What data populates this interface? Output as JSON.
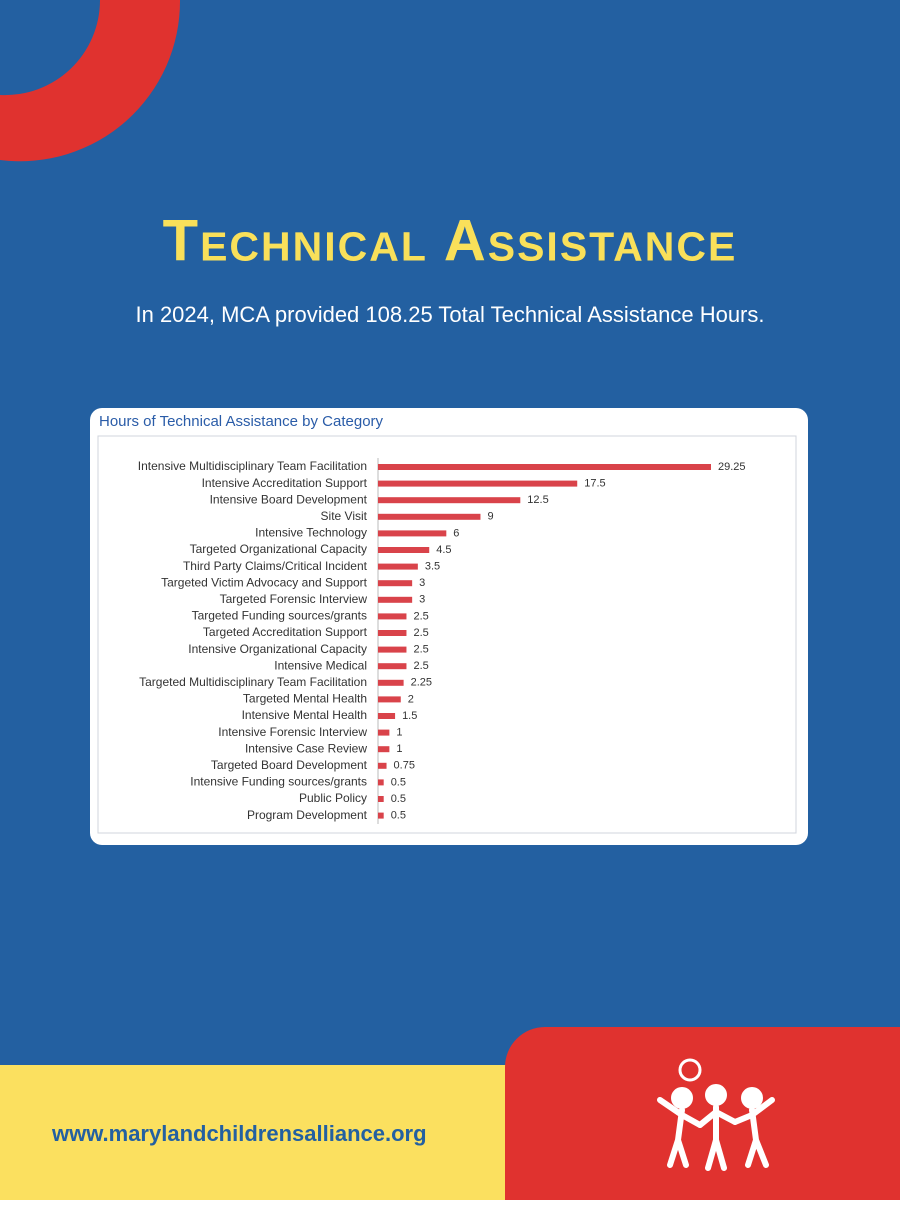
{
  "header": {
    "title": "Technical Assistance",
    "subtitle": "In 2024, MCA provided 108.25 Total Technical Assistance Hours."
  },
  "footer": {
    "url": "www.marylandchildrensalliance.org"
  },
  "chart_data": {
    "type": "bar",
    "orientation": "horizontal",
    "title": "Hours of Technical Assistance by Category",
    "color": "#d9434a",
    "categories": [
      "Intensive Multidisciplinary Team Facilitation",
      "Intensive Accreditation Support",
      "Intensive Board Development",
      "Site Visit",
      "Intensive Technology",
      "Targeted Organizational Capacity",
      "Third Party Claims/Critical Incident",
      "Targeted Victim Advocacy and Support",
      "Targeted Forensic Interview",
      "Targeted Funding sources/grants",
      "Targeted Accreditation Support",
      "Intensive Organizational Capacity",
      "Intensive Medical",
      "Targeted Multidisciplinary Team Facilitation",
      "Targeted Mental Health",
      "Intensive Mental Health",
      "Intensive Forensic Interview",
      "Intensive Case Review",
      "Targeted Board Development",
      "Intensive Funding sources/grants",
      "Public Policy",
      "Program Development"
    ],
    "values": [
      29.25,
      17.5,
      12.5,
      9,
      6,
      4.5,
      3.5,
      3,
      3,
      2.5,
      2.5,
      2.5,
      2.5,
      2.25,
      2,
      1.5,
      1,
      1,
      0.75,
      0.5,
      0.5,
      0.5
    ]
  }
}
